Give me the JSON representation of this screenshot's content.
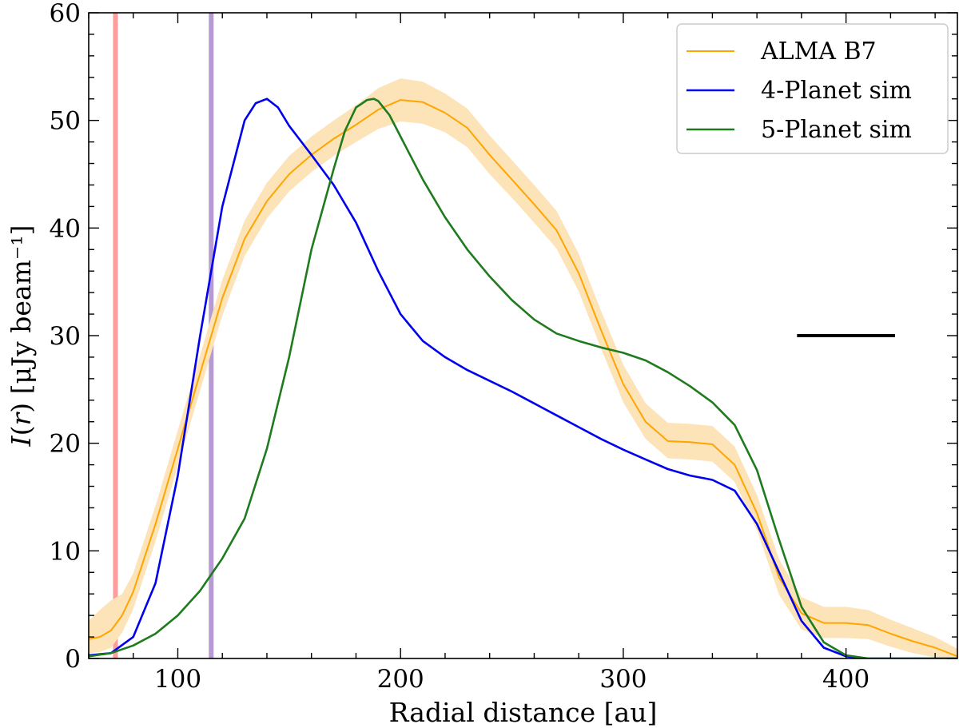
{
  "chart_data": {
    "type": "line",
    "xlabel": "Radial distance [au]",
    "ylabel": "I(r) [μJy beam⁻¹]",
    "xlim": [
      60,
      450
    ],
    "ylim": [
      0,
      60
    ],
    "x_ticks": [
      100,
      200,
      300,
      400
    ],
    "y_ticks": [
      0,
      10,
      20,
      30,
      40,
      50,
      60
    ],
    "grid": false,
    "legend_position": "top-right",
    "series": [
      {
        "name": "ALMA B7",
        "color": "#FFA500",
        "band_color": "#FCE3B8",
        "x": [
          60,
          65,
          70,
          75,
          80,
          90,
          100,
          110,
          120,
          130,
          140,
          150,
          160,
          170,
          180,
          190,
          200,
          210,
          220,
          230,
          240,
          250,
          260,
          270,
          280,
          290,
          300,
          310,
          320,
          330,
          340,
          350,
          360,
          370,
          380,
          390,
          400,
          410,
          420,
          430,
          440,
          450
        ],
        "y": [
          1.8,
          2.0,
          2.6,
          4.0,
          6.2,
          12.5,
          19.5,
          26.5,
          33.5,
          39.0,
          42.5,
          45.0,
          46.8,
          48.3,
          49.6,
          51.0,
          51.9,
          51.7,
          50.7,
          49.3,
          46.8,
          44.5,
          42.2,
          39.8,
          35.8,
          30.5,
          25.5,
          22.0,
          20.2,
          20.1,
          19.9,
          18.0,
          13.5,
          7.5,
          4.2,
          3.3,
          3.3,
          3.1,
          2.3,
          1.6,
          1.0,
          0.2
        ],
        "y_low": [
          0.5,
          0.6,
          1.0,
          2.4,
          4.6,
          10.9,
          17.9,
          24.9,
          31.9,
          37.4,
          40.9,
          43.4,
          45.2,
          46.7,
          48.0,
          49.2,
          49.9,
          49.7,
          48.9,
          47.5,
          45.0,
          42.8,
          40.5,
          38.1,
          34.1,
          28.8,
          23.8,
          20.4,
          18.6,
          18.5,
          18.3,
          16.4,
          11.9,
          5.9,
          2.7,
          1.9,
          1.9,
          1.8,
          1.1,
          0.5,
          0.1,
          0.0
        ],
        "y_high": [
          3.5,
          4.5,
          5.4,
          6.0,
          7.9,
          14.2,
          21.2,
          28.2,
          35.2,
          40.7,
          44.2,
          46.7,
          48.5,
          50.0,
          51.4,
          53.0,
          53.9,
          53.6,
          52.5,
          51.1,
          48.6,
          46.3,
          44.0,
          41.6,
          37.6,
          32.3,
          27.3,
          23.7,
          21.9,
          21.8,
          21.6,
          19.7,
          15.2,
          9.2,
          5.7,
          4.8,
          4.8,
          4.5,
          3.6,
          2.8,
          2.0,
          0.9
        ]
      },
      {
        "name": "4-Planet sim",
        "color": "#0000EE",
        "x": [
          60,
          70,
          80,
          90,
          100,
          110,
          120,
          130,
          135,
          140,
          145,
          150,
          160,
          170,
          180,
          190,
          200,
          210,
          220,
          230,
          240,
          250,
          260,
          270,
          280,
          290,
          300,
          310,
          320,
          330,
          340,
          350,
          360,
          370,
          380,
          390,
          400,
          410,
          420,
          430,
          440,
          450
        ],
        "y": [
          0.3,
          0.5,
          2.0,
          7.0,
          17.0,
          30.0,
          42.0,
          50.0,
          51.6,
          52.0,
          51.2,
          49.5,
          46.8,
          44.0,
          40.5,
          36.0,
          32.0,
          29.5,
          28.0,
          26.8,
          25.8,
          24.8,
          23.7,
          22.6,
          21.5,
          20.4,
          19.4,
          18.5,
          17.6,
          17.0,
          16.6,
          15.6,
          12.5,
          8.0,
          3.5,
          1.0,
          0.2,
          0.0,
          0.0,
          0.0,
          0.0,
          0.0
        ]
      },
      {
        "name": "5-Planet sim",
        "color": "#1E7B1E",
        "x": [
          60,
          70,
          80,
          90,
          100,
          110,
          120,
          130,
          140,
          150,
          160,
          170,
          175,
          180,
          185,
          188,
          190,
          195,
          200,
          210,
          220,
          230,
          240,
          250,
          260,
          270,
          280,
          290,
          300,
          310,
          320,
          330,
          340,
          350,
          360,
          370,
          380,
          390,
          400,
          410,
          420,
          430,
          440,
          450
        ],
        "y": [
          0.2,
          0.5,
          1.2,
          2.3,
          4.0,
          6.3,
          9.3,
          13.0,
          19.5,
          28.0,
          38.0,
          45.5,
          49.0,
          51.2,
          51.9,
          52.0,
          51.8,
          50.5,
          48.5,
          44.5,
          41.0,
          38.0,
          35.5,
          33.3,
          31.5,
          30.2,
          29.5,
          28.9,
          28.4,
          27.7,
          26.6,
          25.3,
          23.8,
          21.7,
          17.5,
          11.0,
          4.8,
          1.5,
          0.3,
          0.0,
          0.0,
          0.0,
          0.0,
          0.0
        ]
      }
    ],
    "vertical_lines": [
      {
        "x": 72,
        "color": "#FF9C9C"
      },
      {
        "x": 115,
        "color": "#B59BD1"
      }
    ],
    "scale_bar": {
      "x_start": 378,
      "x_end": 422,
      "y": 30,
      "color": "#000000"
    }
  }
}
